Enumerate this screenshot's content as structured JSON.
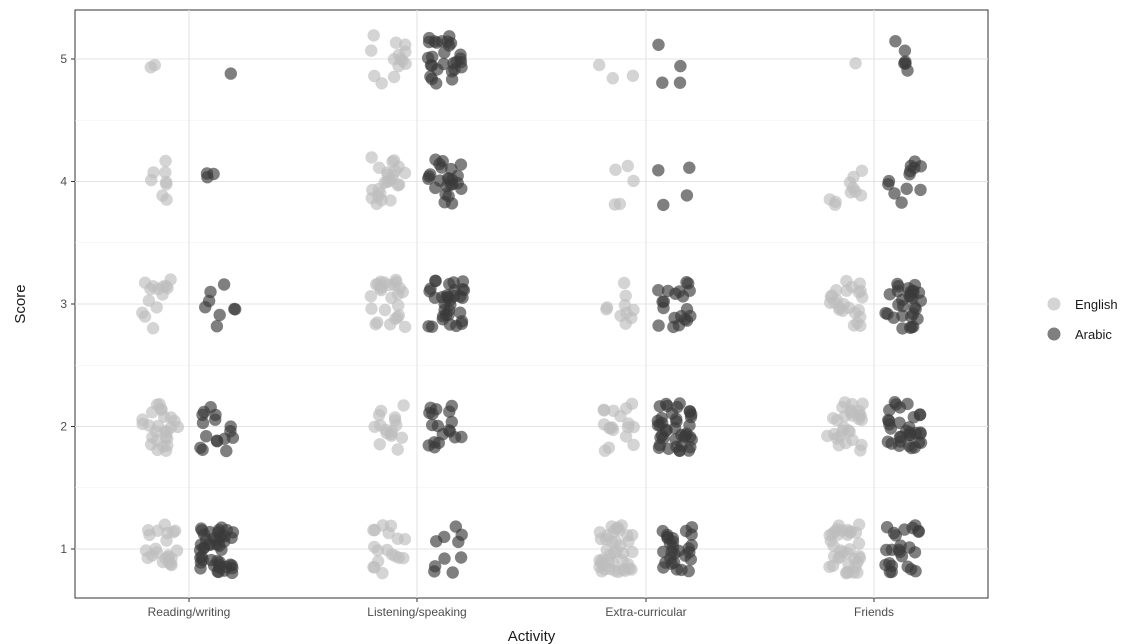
{
  "chart_data": {
    "type": "scatter",
    "title": "",
    "xlabel": "Activity",
    "ylabel": "Score",
    "categories": [
      "Reading/writing",
      "Listening/speaking",
      "Extra-curricular",
      "Friends"
    ],
    "y_ticks": [
      1,
      2,
      3,
      4,
      5
    ],
    "ylim": [
      0.6,
      5.4
    ],
    "grid": true,
    "legend_position": "right",
    "series": [
      {
        "name": "English",
        "color": "#bdbdbd",
        "counts": [
          [
            22,
            26,
            14,
            8,
            2
          ],
          [
            18,
            16,
            26,
            24,
            14
          ],
          [
            40,
            18,
            10,
            5,
            3
          ],
          [
            36,
            28,
            24,
            10,
            1
          ]
        ]
      },
      {
        "name": "Arabic",
        "color": "#3a3a3a",
        "counts": [
          [
            45,
            16,
            8,
            3,
            1
          ],
          [
            10,
            18,
            34,
            24,
            28
          ],
          [
            28,
            40,
            20,
            4,
            4
          ],
          [
            24,
            32,
            30,
            12,
            6
          ]
        ]
      }
    ]
  }
}
